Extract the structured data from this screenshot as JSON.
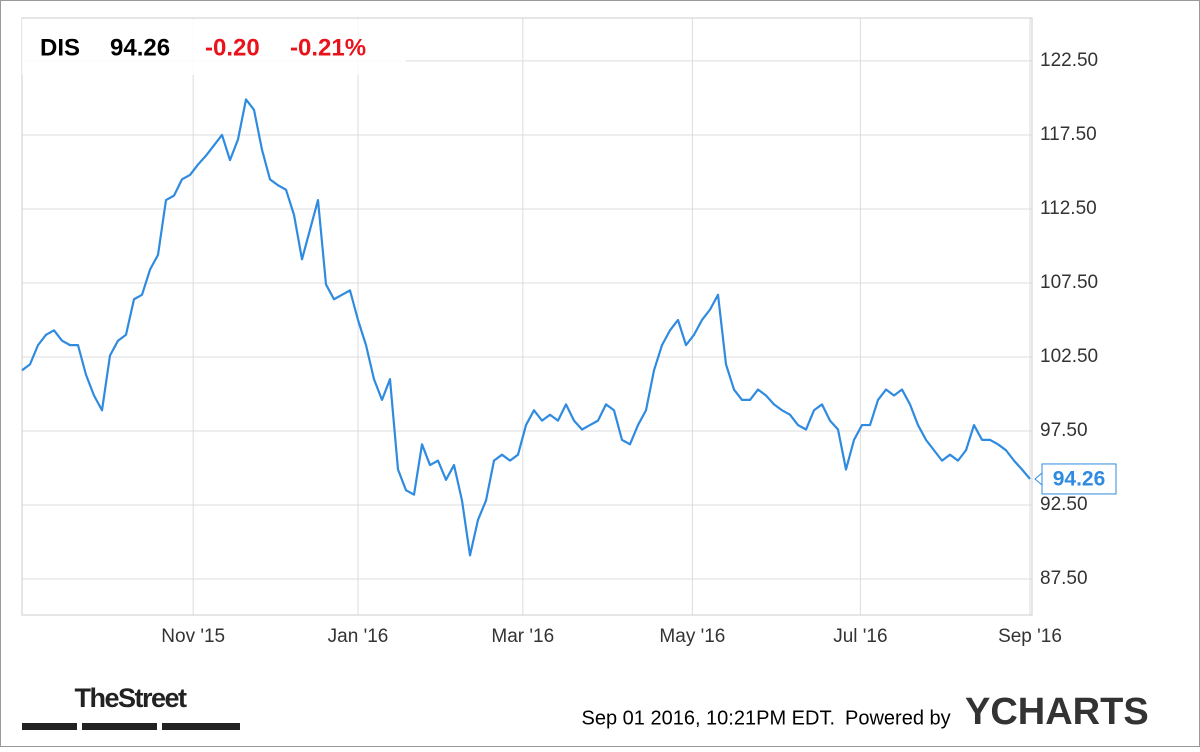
{
  "chart_data": {
    "type": "line",
    "quote": {
      "symbol": "DIS",
      "change": "-0.20",
      "change_percent": "-0.21%"
    },
    "footer": {
      "timestamp": "Sep 01 2016, 10:21PM EDT.",
      "powered_by": "Powered by",
      "brand": "YCHARTS",
      "publisher": "TheStreet"
    },
    "series": [
      {
        "name": "DIS",
        "color": "#2f8be0",
        "values": [
          101.6,
          102.0,
          103.3,
          104.0,
          104.3,
          103.6,
          103.3,
          103.3,
          101.3,
          99.9,
          98.9,
          102.6,
          103.6,
          104.0,
          106.4,
          106.7,
          108.4,
          109.4,
          113.1,
          113.4,
          114.5,
          114.8,
          115.5,
          116.1,
          116.8,
          117.5,
          115.8,
          117.2,
          119.9,
          119.2,
          116.5,
          114.5,
          114.1,
          113.8,
          112.1,
          109.1,
          111.1,
          113.1,
          107.4,
          106.4,
          106.7,
          107.0,
          105.0,
          103.3,
          101.0,
          99.6,
          101.0,
          94.9,
          93.5,
          93.2,
          96.6,
          95.2,
          95.5,
          94.2,
          95.2,
          92.8,
          89.1,
          91.5,
          92.8,
          95.5,
          95.9,
          95.5,
          95.9,
          97.9,
          98.9,
          98.2,
          98.6,
          98.2,
          99.3,
          98.2,
          97.6,
          97.9,
          98.2,
          99.3,
          98.9,
          96.9,
          96.6,
          97.9,
          98.9,
          101.6,
          103.3,
          104.3,
          105.0,
          103.3,
          104.0,
          105.0,
          105.7,
          106.7,
          102.0,
          100.3,
          99.6,
          99.6,
          100.3,
          99.9,
          99.3,
          98.9,
          98.6,
          97.9,
          97.6,
          98.9,
          99.3,
          98.2,
          97.6,
          94.9,
          96.9,
          97.9,
          97.9,
          99.6,
          100.3,
          99.9,
          100.3,
          99.3,
          97.9,
          96.9,
          96.2,
          95.5,
          95.9,
          95.5,
          96.2,
          97.9,
          96.9,
          96.9,
          96.6,
          96.2,
          95.5,
          94.9,
          94.26
        ]
      }
    ],
    "xlim": [
      0,
      126.25
    ],
    "xticks": [
      {
        "value": 21.4,
        "label": "Nov '15"
      },
      {
        "value": 42,
        "label": "Jan '16"
      },
      {
        "value": 62.6,
        "label": "Mar '16"
      },
      {
        "value": 83.8,
        "label": "May '16"
      },
      {
        "value": 104.8,
        "label": "Jul '16"
      },
      {
        "value": 126,
        "label": "Sep '16"
      }
    ],
    "ylim": [
      85.07,
      125.4
    ],
    "yticks": [
      {
        "value": 87.5,
        "label": "87.50"
      },
      {
        "value": 92.5,
        "label": "92.50"
      },
      {
        "value": 97.5,
        "label": "97.50"
      },
      {
        "value": 102.5,
        "label": "102.50"
      },
      {
        "value": 107.5,
        "label": "107.50"
      },
      {
        "value": 112.5,
        "label": "112.50"
      },
      {
        "value": 117.5,
        "label": "117.50"
      },
      {
        "value": 122.5,
        "label": "122.50"
      }
    ],
    "grid": true
  }
}
